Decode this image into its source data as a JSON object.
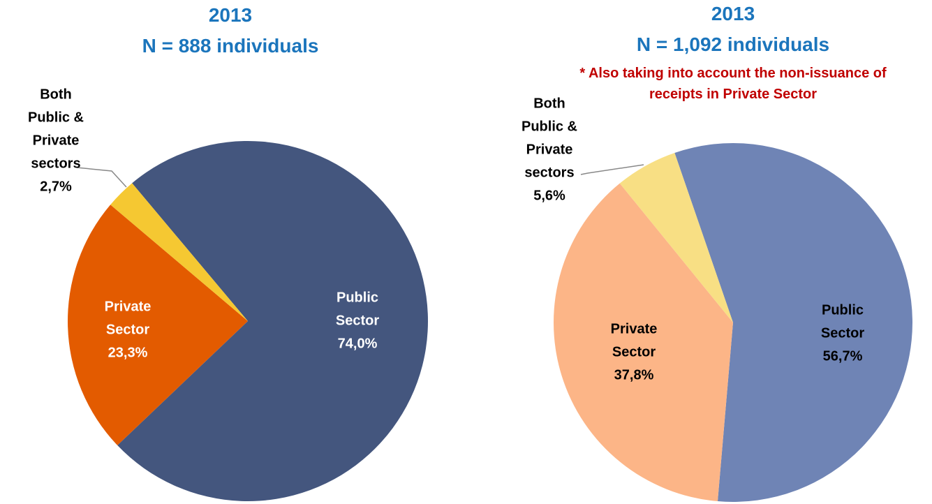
{
  "chart_data": [
    {
      "type": "pie",
      "title": "2013",
      "subtitle": "N = 888 individuals",
      "categories": [
        "Public Sector",
        "Private Sector",
        "Both Public & Private sectors"
      ],
      "values": [
        74.0,
        23.3,
        2.7
      ],
      "value_labels": [
        "74,0%",
        "23,3%",
        "2,7%"
      ],
      "colors": [
        "#44567e",
        "#e35b00",
        "#f5c832"
      ]
    },
    {
      "type": "pie",
      "title": "2013",
      "subtitle": "N = 1,092 individuals",
      "annotation": "* Also taking into account the non-issuance of receipts in Private Sector",
      "categories": [
        "Public Sector",
        "Private Sector",
        "Both Public & Private sectors"
      ],
      "values": [
        56.7,
        37.8,
        5.6
      ],
      "value_labels": [
        "56,7%",
        "37,8%",
        "5,6%"
      ],
      "colors": [
        "#6f84b5",
        "#fcb587",
        "#f8df84"
      ]
    }
  ]
}
